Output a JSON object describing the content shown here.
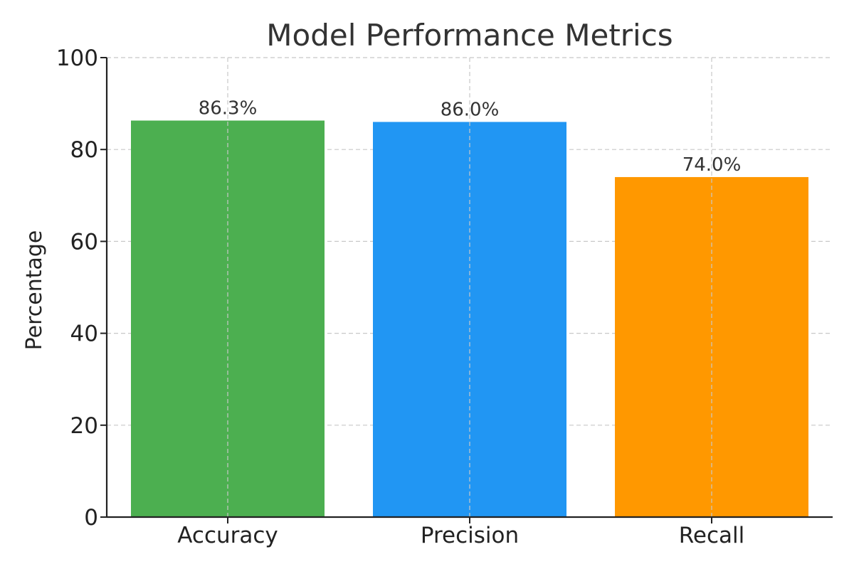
{
  "chart_data": {
    "type": "bar",
    "title": "Model Performance Metrics",
    "xlabel": "",
    "ylabel": "Percentage",
    "categories": [
      "Accuracy",
      "Precision",
      "Recall"
    ],
    "values": [
      86.3,
      86.0,
      74.0
    ],
    "data_labels": [
      "86.3%",
      "86.0%",
      "74.0%"
    ],
    "colors": [
      "#4caf50",
      "#2196f3",
      "#ff9800"
    ],
    "ylim": [
      0,
      100
    ],
    "yticks": [
      0,
      20,
      40,
      60,
      80,
      100
    ],
    "grid": true,
    "legend": "none"
  }
}
